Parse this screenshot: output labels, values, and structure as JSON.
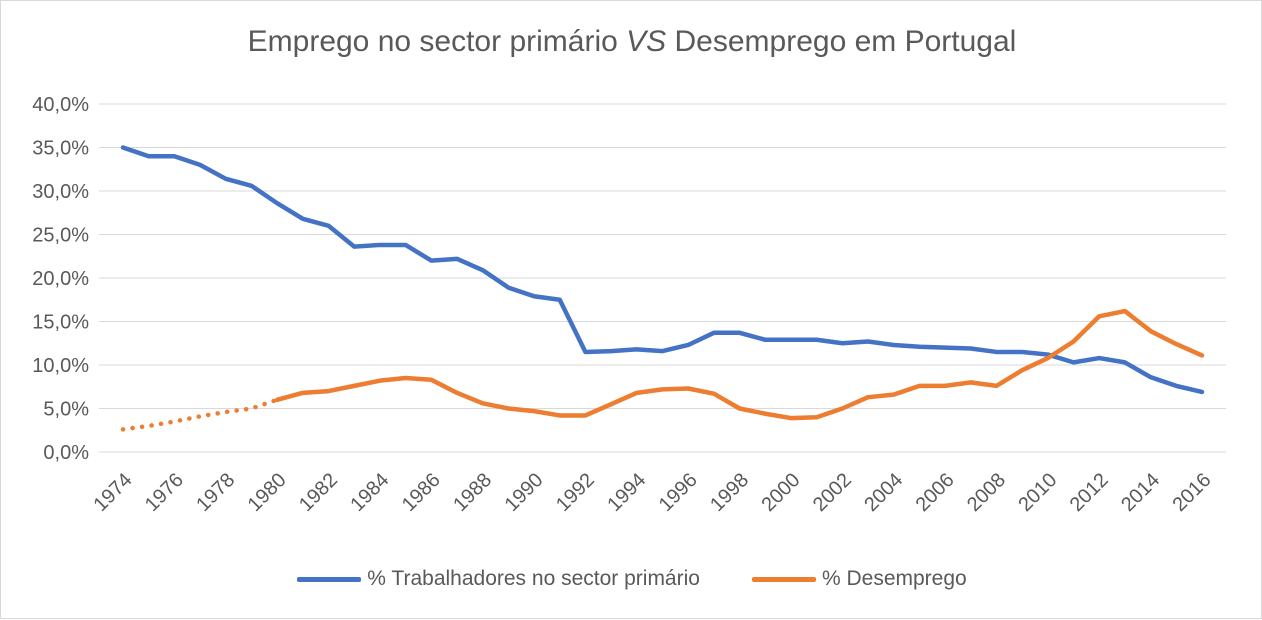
{
  "chart_data": {
    "type": "line",
    "title_parts": [
      "Emprego no sector primário ",
      "VS",
      " Desemprego em Portugal"
    ],
    "xlabel": "",
    "ylabel": "",
    "ylim": [
      0,
      40
    ],
    "yticks": [
      "0,0%",
      "5,0%",
      "10,0%",
      "15,0%",
      "20,0%",
      "25,0%",
      "30,0%",
      "35,0%",
      "40,0%"
    ],
    "xtick_labels": [
      "1974",
      "1976",
      "1978",
      "1980",
      "1982",
      "1984",
      "1986",
      "1988",
      "1990",
      "1992",
      "1994",
      "1996",
      "1998",
      "2000",
      "2002",
      "2004",
      "2006",
      "2008",
      "2010",
      "2012",
      "2014",
      "2016"
    ],
    "grid": true,
    "legend_position": "bottom",
    "x": [
      1974,
      1975,
      1976,
      1977,
      1978,
      1979,
      1980,
      1981,
      1982,
      1983,
      1984,
      1985,
      1986,
      1987,
      1988,
      1989,
      1990,
      1991,
      1992,
      1993,
      1994,
      1995,
      1996,
      1997,
      1998,
      1999,
      2000,
      2001,
      2002,
      2003,
      2004,
      2005,
      2006,
      2007,
      2008,
      2009,
      2010,
      2011,
      2012,
      2013,
      2014,
      2015,
      2016
    ],
    "series": [
      {
        "name": "% Trabalhadores no sector primário",
        "color": "#4472c4",
        "values": [
          35.0,
          34.0,
          34.0,
          33.0,
          31.4,
          30.6,
          28.6,
          26.8,
          26.0,
          23.6,
          23.8,
          23.8,
          22.0,
          22.2,
          20.9,
          18.9,
          17.9,
          17.5,
          11.5,
          11.6,
          11.8,
          11.6,
          12.3,
          13.7,
          13.7,
          12.9,
          12.9,
          12.9,
          12.5,
          12.7,
          12.3,
          12.1,
          12.0,
          11.9,
          11.5,
          11.5,
          11.2,
          10.3,
          10.8,
          10.3,
          8.6,
          7.6,
          6.9
        ]
      },
      {
        "name": "% Desemprego",
        "color": "#ed7d31",
        "dotted_until": 1980,
        "values": [
          2.6,
          3.0,
          3.5,
          4.1,
          4.6,
          5.0,
          6.0,
          6.8,
          7.0,
          7.6,
          8.2,
          8.5,
          8.3,
          6.8,
          5.6,
          5.0,
          4.7,
          4.2,
          4.2,
          5.5,
          6.8,
          7.2,
          7.3,
          6.7,
          5.0,
          4.4,
          3.9,
          4.0,
          5.0,
          6.3,
          6.6,
          7.6,
          7.6,
          8.0,
          7.6,
          9.4,
          10.8,
          12.7,
          15.6,
          16.2,
          13.9,
          12.4,
          11.1
        ]
      }
    ]
  }
}
